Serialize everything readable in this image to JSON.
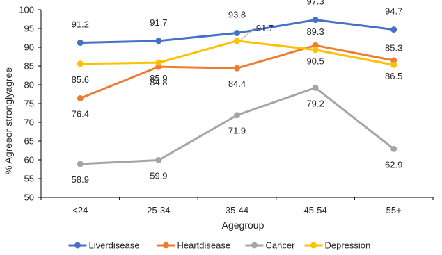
{
  "chart_data": {
    "type": "line",
    "categories": [
      "<24",
      "25-34",
      "35-44",
      "45-54",
      "55+"
    ],
    "xlabel": "Agegroup",
    "ylabel": "% Agreeor stronglyagree",
    "ylim": [
      50,
      100
    ],
    "yticks": [
      50,
      55,
      60,
      65,
      70,
      75,
      80,
      85,
      90,
      95,
      100
    ],
    "grid": false,
    "legend_position": "bottom",
    "series": [
      {
        "name": "Liverdisease",
        "color": "#4472c4",
        "values": [
          91.2,
          91.7,
          93.8,
          97.3,
          94.7
        ]
      },
      {
        "name": "Heartdisease",
        "color": "#ed7d31",
        "values": [
          76.4,
          84.8,
          84.4,
          90.5,
          86.5
        ]
      },
      {
        "name": "Cancer",
        "color": "#a5a5a5",
        "values": [
          58.9,
          59.9,
          71.9,
          79.2,
          62.9
        ]
      },
      {
        "name": "Depression",
        "color": "#ffc000",
        "values": [
          85.6,
          85.9,
          91.7,
          89.3,
          85.3
        ]
      }
    ]
  }
}
